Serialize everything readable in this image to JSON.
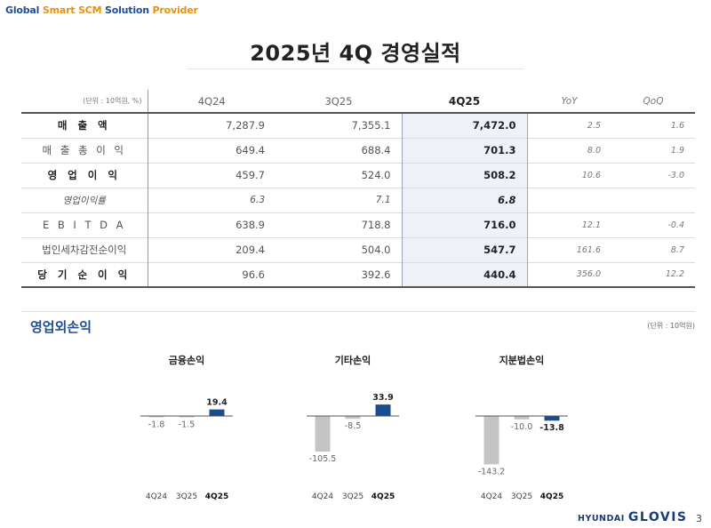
{
  "header": {
    "tagline": [
      "Global",
      "Smart SCM",
      "Solution",
      "Provider"
    ],
    "title": "2025년 4Q 경영실적"
  },
  "table": {
    "unit": "(단위 : 10억원, %)",
    "columns": [
      "4Q24",
      "3Q25",
      "4Q25",
      "YoY",
      "QoQ"
    ],
    "rows": [
      {
        "label": "매 출 액",
        "q4_24": "7,287.9",
        "q3_25": "7,355.1",
        "q4_25": "7,472.0",
        "yoy": "2.5",
        "qoq": "1.6"
      },
      {
        "label": "매 출 총 이 익",
        "q4_24": "649.4",
        "q3_25": "688.4",
        "q4_25": "701.3",
        "yoy": "8.0",
        "qoq": "1.9"
      },
      {
        "label": "영 업 이 익",
        "q4_24": "459.7",
        "q3_25": "524.0",
        "q4_25": "508.2",
        "yoy": "10.6",
        "qoq": "-3.0"
      },
      {
        "label": "영업이익률",
        "q4_24": "6.3",
        "q3_25": "7.1",
        "q4_25": "6.8",
        "yoy": "",
        "qoq": ""
      },
      {
        "label": "E B I T D A",
        "q4_24": "638.9",
        "q3_25": "718.8",
        "q4_25": "716.0",
        "yoy": "12.1",
        "qoq": "-0.4"
      },
      {
        "label": "법인세차감전순이익",
        "q4_24": "209.4",
        "q3_25": "504.0",
        "q4_25": "547.7",
        "yoy": "161.6",
        "qoq": "8.7"
      },
      {
        "label": "당 기 순 이 익",
        "q4_24": "96.6",
        "q3_25": "392.6",
        "q4_25": "440.4",
        "yoy": "356.0",
        "qoq": "12.2"
      }
    ]
  },
  "section": {
    "title": "영업외손익",
    "unit": "(단위 : 10억원)"
  },
  "chart_data": [
    {
      "type": "bar",
      "title": "금융손익",
      "categories": [
        "4Q24",
        "3Q25",
        "4Q25"
      ],
      "values": [
        -1.8,
        -1.5,
        19.4
      ],
      "value_labels": [
        "-1.8",
        "-1.5",
        "19.4"
      ]
    },
    {
      "type": "bar",
      "title": "기타손익",
      "categories": [
        "4Q24",
        "3Q25",
        "4Q25"
      ],
      "values": [
        -105.5,
        -8.5,
        33.9
      ],
      "value_labels": [
        "-105.5",
        "-8.5",
        "33.9"
      ]
    },
    {
      "type": "bar",
      "title": "지분법손익",
      "categories": [
        "4Q24",
        "3Q25",
        "4Q25"
      ],
      "values": [
        -143.2,
        -10.0,
        -13.8
      ],
      "value_labels": [
        "-143.2",
        "-10.0",
        "-13.8"
      ]
    }
  ],
  "colors": {
    "prior_bar": "#c4c4c4",
    "current_bar": "#1b4c8e",
    "accent": "#1f4e96",
    "highlight": "#eef2f8"
  },
  "footer": {
    "logo_small": "HYUNDAI",
    "logo_big": "GLOVIS",
    "page_number": "3"
  }
}
